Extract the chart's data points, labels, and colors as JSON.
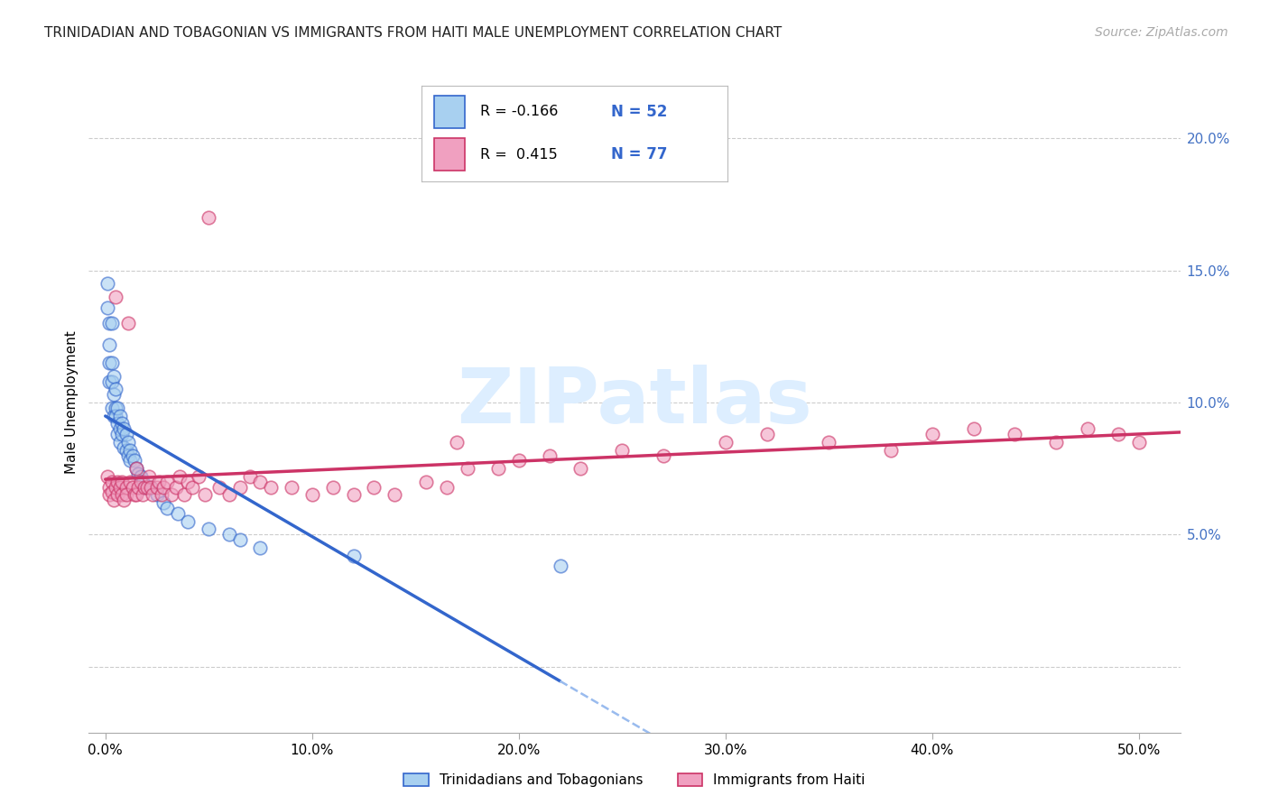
{
  "title": "TRINIDADIAN AND TOBAGONIAN VS IMMIGRANTS FROM HAITI MALE UNEMPLOYMENT CORRELATION CHART",
  "source": "Source: ZipAtlas.com",
  "ylabel": "Male Unemployment",
  "x_ticks": [
    0.0,
    0.1,
    0.2,
    0.3,
    0.4,
    0.5
  ],
  "x_tick_labels": [
    "0.0%",
    "10.0%",
    "20.0%",
    "30.0%",
    "40.0%",
    "50.0%"
  ],
  "y_ticks": [
    0.0,
    0.05,
    0.1,
    0.15,
    0.2
  ],
  "y_tick_labels_right": [
    "",
    "5.0%",
    "10.0%",
    "15.0%",
    "20.0%"
  ],
  "xlim": [
    -0.008,
    0.52
  ],
  "ylim": [
    -0.025,
    0.225
  ],
  "color_blue": "#A8D0F0",
  "color_pink": "#F0A0C0",
  "color_blue_line": "#3366CC",
  "color_pink_line": "#CC3366",
  "color_blue_dash": "#99BBEE",
  "watermark_color": "#ddeeff",
  "title_color": "#222222",
  "source_color": "#aaaaaa",
  "legend_label1": "Trinidadians and Tobagonians",
  "legend_label2": "Immigrants from Haiti",
  "blue_x": [
    0.001,
    0.001,
    0.002,
    0.002,
    0.002,
    0.002,
    0.003,
    0.003,
    0.003,
    0.003,
    0.004,
    0.004,
    0.004,
    0.005,
    0.005,
    0.005,
    0.006,
    0.006,
    0.006,
    0.007,
    0.007,
    0.007,
    0.008,
    0.008,
    0.009,
    0.009,
    0.01,
    0.01,
    0.011,
    0.011,
    0.012,
    0.012,
    0.013,
    0.014,
    0.015,
    0.016,
    0.017,
    0.018,
    0.019,
    0.02,
    0.022,
    0.025,
    0.028,
    0.03,
    0.035,
    0.04,
    0.05,
    0.06,
    0.065,
    0.075,
    0.12,
    0.22
  ],
  "blue_y": [
    0.145,
    0.136,
    0.13,
    0.122,
    0.115,
    0.108,
    0.13,
    0.115,
    0.108,
    0.098,
    0.11,
    0.103,
    0.095,
    0.105,
    0.098,
    0.095,
    0.098,
    0.092,
    0.088,
    0.095,
    0.09,
    0.085,
    0.092,
    0.088,
    0.09,
    0.083,
    0.088,
    0.082,
    0.085,
    0.08,
    0.082,
    0.078,
    0.08,
    0.078,
    0.075,
    0.073,
    0.072,
    0.07,
    0.068,
    0.068,
    0.068,
    0.065,
    0.062,
    0.06,
    0.058,
    0.055,
    0.052,
    0.05,
    0.048,
    0.045,
    0.042,
    0.038
  ],
  "pink_x": [
    0.001,
    0.002,
    0.002,
    0.003,
    0.003,
    0.004,
    0.005,
    0.005,
    0.006,
    0.006,
    0.007,
    0.008,
    0.008,
    0.009,
    0.01,
    0.01,
    0.011,
    0.012,
    0.013,
    0.014,
    0.015,
    0.015,
    0.016,
    0.017,
    0.018,
    0.019,
    0.02,
    0.021,
    0.022,
    0.023,
    0.025,
    0.026,
    0.027,
    0.028,
    0.03,
    0.032,
    0.034,
    0.036,
    0.038,
    0.04,
    0.042,
    0.045,
    0.048,
    0.05,
    0.055,
    0.06,
    0.065,
    0.07,
    0.075,
    0.08,
    0.09,
    0.1,
    0.11,
    0.12,
    0.13,
    0.14,
    0.155,
    0.165,
    0.175,
    0.19,
    0.2,
    0.215,
    0.23,
    0.25,
    0.27,
    0.3,
    0.32,
    0.35,
    0.38,
    0.4,
    0.42,
    0.44,
    0.46,
    0.475,
    0.49,
    0.5,
    0.17
  ],
  "pink_y": [
    0.072,
    0.068,
    0.065,
    0.07,
    0.066,
    0.063,
    0.14,
    0.068,
    0.065,
    0.07,
    0.068,
    0.065,
    0.07,
    0.063,
    0.068,
    0.065,
    0.13,
    0.07,
    0.068,
    0.065,
    0.075,
    0.065,
    0.068,
    0.07,
    0.065,
    0.068,
    0.068,
    0.072,
    0.068,
    0.065,
    0.068,
    0.07,
    0.065,
    0.068,
    0.07,
    0.065,
    0.068,
    0.072,
    0.065,
    0.07,
    0.068,
    0.072,
    0.065,
    0.17,
    0.068,
    0.065,
    0.068,
    0.072,
    0.07,
    0.068,
    0.068,
    0.065,
    0.068,
    0.065,
    0.068,
    0.065,
    0.07,
    0.068,
    0.075,
    0.075,
    0.078,
    0.08,
    0.075,
    0.082,
    0.08,
    0.085,
    0.088,
    0.085,
    0.082,
    0.088,
    0.09,
    0.088,
    0.085,
    0.09,
    0.088,
    0.085,
    0.085
  ]
}
